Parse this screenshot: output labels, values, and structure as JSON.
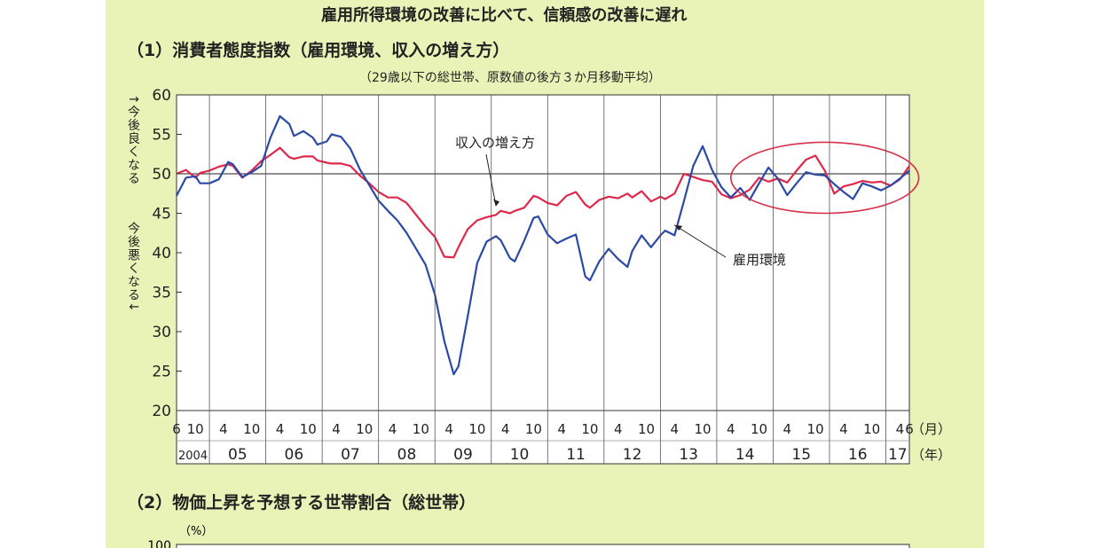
{
  "main_title": "雇用所得環境の改善に比べて、信頼感の改善に遅れ",
  "section1": {
    "title": "（1）消費者態度指数（雇用環境、収入の増え方）",
    "subtitle": "（29歳以下の総世帯、原数値の後方３か月移動平均）",
    "ylabel_up": "↑今後良くなる",
    "ylabel_down": "今後悪くなる↓"
  },
  "section2": {
    "title": "（2）物価上昇を予想する世帯割合（総世帯）",
    "unit": "（%）",
    "first_tick": "100"
  },
  "colors": {
    "panel": "#e9f3b7",
    "employment": "#2b4aa6",
    "income": "#e0284b",
    "highlight": "#d8304a"
  },
  "chart_data": {
    "type": "line",
    "ylim": [
      20,
      60
    ],
    "y_ticks": [
      "60",
      "55",
      "50",
      "45",
      "40",
      "35",
      "30",
      "25",
      "20"
    ],
    "reference_line": 50,
    "month_label": "（月）",
    "year_label": "（年）",
    "x_start": "2004-06",
    "x_end": "2017-06",
    "month_ticks": [
      {
        "label": "6",
        "month": "2004-06"
      },
      {
        "label": "10",
        "month": "2004-10"
      },
      {
        "label": "4",
        "month": "2005-04"
      },
      {
        "label": "10",
        "month": "2005-10"
      },
      {
        "label": "4",
        "month": "2006-04"
      },
      {
        "label": "10",
        "month": "2006-10"
      },
      {
        "label": "4",
        "month": "2007-04"
      },
      {
        "label": "10",
        "month": "2007-10"
      },
      {
        "label": "4",
        "month": "2008-04"
      },
      {
        "label": "10",
        "month": "2008-10"
      },
      {
        "label": "4",
        "month": "2009-04"
      },
      {
        "label": "10",
        "month": "2009-10"
      },
      {
        "label": "4",
        "month": "2010-04"
      },
      {
        "label": "10",
        "month": "2010-10"
      },
      {
        "label": "4",
        "month": "2011-04"
      },
      {
        "label": "10",
        "month": "2011-10"
      },
      {
        "label": "4",
        "month": "2012-04"
      },
      {
        "label": "10",
        "month": "2012-10"
      },
      {
        "label": "4",
        "month": "2013-04"
      },
      {
        "label": "10",
        "month": "2013-10"
      },
      {
        "label": "4",
        "month": "2014-04"
      },
      {
        "label": "10",
        "month": "2014-10"
      },
      {
        "label": "4",
        "month": "2015-04"
      },
      {
        "label": "10",
        "month": "2015-10"
      },
      {
        "label": "4",
        "month": "2016-04"
      },
      {
        "label": "10",
        "month": "2016-10"
      },
      {
        "label": "4",
        "month": "2017-04"
      },
      {
        "label": "6",
        "month": "2017-06"
      }
    ],
    "year_labels": [
      "2004",
      "05",
      "06",
      "07",
      "08",
      "09",
      "10",
      "11",
      "12",
      "13",
      "14",
      "15",
      "16",
      "17"
    ],
    "series": [
      {
        "name": "雇用環境",
        "points": [
          [
            "2004-06",
            47.2
          ],
          [
            "2004-08",
            49.5
          ],
          [
            "2004-10",
            49.7
          ],
          [
            "2004-11",
            48.8
          ],
          [
            "2005-01",
            48.8
          ],
          [
            "2005-03",
            49.3
          ],
          [
            "2005-05",
            51.5
          ],
          [
            "2005-06",
            51.2
          ],
          [
            "2005-08",
            49.6
          ],
          [
            "2005-10",
            50.2
          ],
          [
            "2005-12",
            51.0
          ],
          [
            "2006-02",
            54.6
          ],
          [
            "2006-04",
            57.3
          ],
          [
            "2006-06",
            56.3
          ],
          [
            "2006-07",
            54.8
          ],
          [
            "2006-09",
            55.4
          ],
          [
            "2006-11",
            54.6
          ],
          [
            "2006-12",
            53.7
          ],
          [
            "2007-02",
            54.1
          ],
          [
            "2007-03",
            55.0
          ],
          [
            "2007-05",
            54.7
          ],
          [
            "2007-07",
            53.2
          ],
          [
            "2007-09",
            50.6
          ],
          [
            "2007-11",
            48.6
          ],
          [
            "2008-01",
            46.6
          ],
          [
            "2008-03",
            45.3
          ],
          [
            "2008-05",
            44.1
          ],
          [
            "2008-07",
            42.5
          ],
          [
            "2008-09",
            40.5
          ],
          [
            "2008-11",
            38.5
          ],
          [
            "2009-01",
            34.7
          ],
          [
            "2009-03",
            28.8
          ],
          [
            "2009-05",
            24.6
          ],
          [
            "2009-06",
            25.6
          ],
          [
            "2009-08",
            32.0
          ],
          [
            "2009-10",
            38.7
          ],
          [
            "2009-12",
            41.4
          ],
          [
            "2010-02",
            42.1
          ],
          [
            "2010-03",
            41.6
          ],
          [
            "2010-05",
            39.3
          ],
          [
            "2010-06",
            38.9
          ],
          [
            "2010-08",
            41.5
          ],
          [
            "2010-10",
            44.4
          ],
          [
            "2010-11",
            44.6
          ],
          [
            "2011-01",
            42.3
          ],
          [
            "2011-03",
            41.2
          ],
          [
            "2011-05",
            41.8
          ],
          [
            "2011-07",
            42.3
          ],
          [
            "2011-09",
            37.0
          ],
          [
            "2011-10",
            36.5
          ],
          [
            "2011-12",
            38.9
          ],
          [
            "2012-02",
            40.5
          ],
          [
            "2012-04",
            39.2
          ],
          [
            "2012-06",
            38.2
          ],
          [
            "2012-07",
            40.2
          ],
          [
            "2012-09",
            42.2
          ],
          [
            "2012-11",
            40.7
          ],
          [
            "2013-01",
            42.2
          ],
          [
            "2013-02",
            42.8
          ],
          [
            "2013-04",
            42.2
          ],
          [
            "2013-06",
            46.5
          ],
          [
            "2013-08",
            51.0
          ],
          [
            "2013-10",
            53.5
          ],
          [
            "2013-12",
            50.5
          ],
          [
            "2014-02",
            48.3
          ],
          [
            "2014-04",
            47.0
          ],
          [
            "2014-06",
            48.2
          ],
          [
            "2014-08",
            46.7
          ],
          [
            "2014-10",
            48.8
          ],
          [
            "2014-12",
            50.8
          ],
          [
            "2015-02",
            49.4
          ],
          [
            "2015-04",
            47.3
          ],
          [
            "2015-06",
            48.8
          ],
          [
            "2015-08",
            50.2
          ],
          [
            "2015-10",
            49.9
          ],
          [
            "2015-12",
            49.8
          ],
          [
            "2016-02",
            48.7
          ],
          [
            "2016-04",
            47.7
          ],
          [
            "2016-06",
            46.8
          ],
          [
            "2016-08",
            48.8
          ],
          [
            "2016-10",
            48.4
          ],
          [
            "2016-12",
            47.9
          ],
          [
            "2017-02",
            48.5
          ],
          [
            "2017-04",
            49.4
          ],
          [
            "2017-06",
            50.4
          ]
        ]
      },
      {
        "name": "収入の増え方",
        "points": [
          [
            "2004-06",
            50.0
          ],
          [
            "2004-08",
            50.5
          ],
          [
            "2004-10",
            49.5
          ],
          [
            "2004-11",
            50.1
          ],
          [
            "2005-01",
            50.4
          ],
          [
            "2005-03",
            50.9
          ],
          [
            "2005-05",
            51.2
          ],
          [
            "2005-06",
            51.0
          ],
          [
            "2005-08",
            49.5
          ],
          [
            "2005-10",
            50.4
          ],
          [
            "2005-12",
            51.6
          ],
          [
            "2006-02",
            52.4
          ],
          [
            "2006-04",
            53.3
          ],
          [
            "2006-06",
            52.1
          ],
          [
            "2006-07",
            51.9
          ],
          [
            "2006-09",
            52.2
          ],
          [
            "2006-11",
            52.2
          ],
          [
            "2006-12",
            51.7
          ],
          [
            "2007-02",
            51.4
          ],
          [
            "2007-03",
            51.3
          ],
          [
            "2007-05",
            51.3
          ],
          [
            "2007-07",
            51.0
          ],
          [
            "2007-09",
            49.8
          ],
          [
            "2007-11",
            48.8
          ],
          [
            "2008-01",
            47.7
          ],
          [
            "2008-03",
            47.0
          ],
          [
            "2008-05",
            47.0
          ],
          [
            "2008-07",
            46.3
          ],
          [
            "2008-09",
            44.8
          ],
          [
            "2008-11",
            43.3
          ],
          [
            "2009-01",
            42.0
          ],
          [
            "2009-03",
            39.5
          ],
          [
            "2009-05",
            39.4
          ],
          [
            "2009-06",
            40.7
          ],
          [
            "2009-08",
            43.0
          ],
          [
            "2009-10",
            44.1
          ],
          [
            "2009-12",
            44.5
          ],
          [
            "2010-02",
            44.8
          ],
          [
            "2010-03",
            45.3
          ],
          [
            "2010-05",
            45.0
          ],
          [
            "2010-06",
            45.3
          ],
          [
            "2010-08",
            45.7
          ],
          [
            "2010-10",
            47.2
          ],
          [
            "2010-11",
            47.0
          ],
          [
            "2011-01",
            46.3
          ],
          [
            "2011-03",
            46.0
          ],
          [
            "2011-05",
            47.2
          ],
          [
            "2011-07",
            47.7
          ],
          [
            "2011-09",
            46.1
          ],
          [
            "2011-10",
            45.7
          ],
          [
            "2011-12",
            46.7
          ],
          [
            "2012-02",
            47.1
          ],
          [
            "2012-04",
            46.9
          ],
          [
            "2012-06",
            47.5
          ],
          [
            "2012-07",
            47.0
          ],
          [
            "2012-09",
            47.8
          ],
          [
            "2012-11",
            46.5
          ],
          [
            "2013-01",
            47.1
          ],
          [
            "2013-02",
            46.8
          ],
          [
            "2013-04",
            47.5
          ],
          [
            "2013-06",
            50.0
          ],
          [
            "2013-08",
            49.6
          ],
          [
            "2013-10",
            49.2
          ],
          [
            "2013-12",
            49.0
          ],
          [
            "2014-02",
            47.4
          ],
          [
            "2014-04",
            46.9
          ],
          [
            "2014-06",
            47.3
          ],
          [
            "2014-08",
            48.0
          ],
          [
            "2014-10",
            49.5
          ],
          [
            "2014-12",
            49.0
          ],
          [
            "2015-02",
            49.4
          ],
          [
            "2015-04",
            48.9
          ],
          [
            "2015-06",
            50.4
          ],
          [
            "2015-08",
            51.8
          ],
          [
            "2015-10",
            52.3
          ],
          [
            "2015-12",
            50.4
          ],
          [
            "2016-02",
            47.5
          ],
          [
            "2016-04",
            48.4
          ],
          [
            "2016-06",
            48.7
          ],
          [
            "2016-08",
            49.1
          ],
          [
            "2016-10",
            48.9
          ],
          [
            "2016-12",
            49.0
          ],
          [
            "2017-02",
            48.5
          ],
          [
            "2017-04",
            49.3
          ],
          [
            "2017-06",
            51.0
          ]
        ]
      }
    ],
    "annotations": [
      {
        "text": "収入の増え方",
        "target_month": "2010-02",
        "target_value": 45.9
      },
      {
        "text": "雇用環境",
        "target_month": "2013-04",
        "target_value": 43.5
      }
    ],
    "highlight": {
      "from": "2014-04",
      "to": "2017-08",
      "range": [
        45,
        54
      ]
    }
  }
}
